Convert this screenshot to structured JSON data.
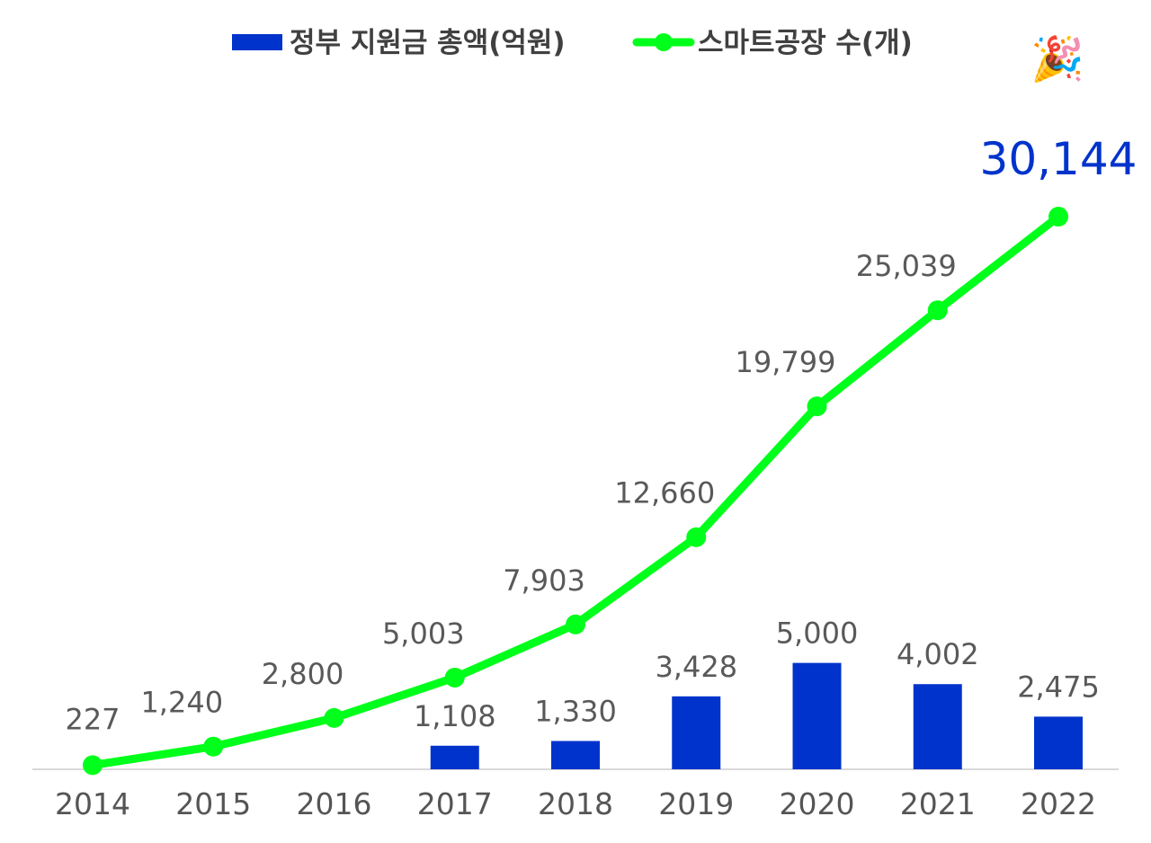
{
  "chart_data": {
    "type": "bar",
    "categories": [
      "2014",
      "2015",
      "2016",
      "2017",
      "2018",
      "2019",
      "2020",
      "2021",
      "2022"
    ],
    "series": [
      {
        "name": "정부 지원금 총액(억원)",
        "type": "bar",
        "color": "#0033cc",
        "values": [
          null,
          null,
          null,
          1108,
          1330,
          3428,
          5000,
          4002,
          2475
        ],
        "labels": [
          "",
          "",
          "",
          "1,108",
          "1,330",
          "3,428",
          "5,000",
          "4,002",
          "2,475"
        ]
      },
      {
        "name": "스마트공장 수(개)",
        "type": "line",
        "color": "#00ff1a",
        "values": [
          227,
          1240,
          2800,
          5003,
          7903,
          12660,
          19799,
          25039,
          30144
        ],
        "labels": [
          "227",
          "1,240",
          "2,800",
          "5,003",
          "7,903",
          "12,660",
          "19,799",
          "25,039",
          "30,144"
        ]
      }
    ],
    "highlight": {
      "index": 8,
      "color": "#0033cc"
    },
    "legend_position": "top",
    "grid": false,
    "bar_axis_max": 28000,
    "line_axis_max": 32500
  },
  "decoration": {
    "icon": "party-popper-icon",
    "glyph": "🎉"
  }
}
